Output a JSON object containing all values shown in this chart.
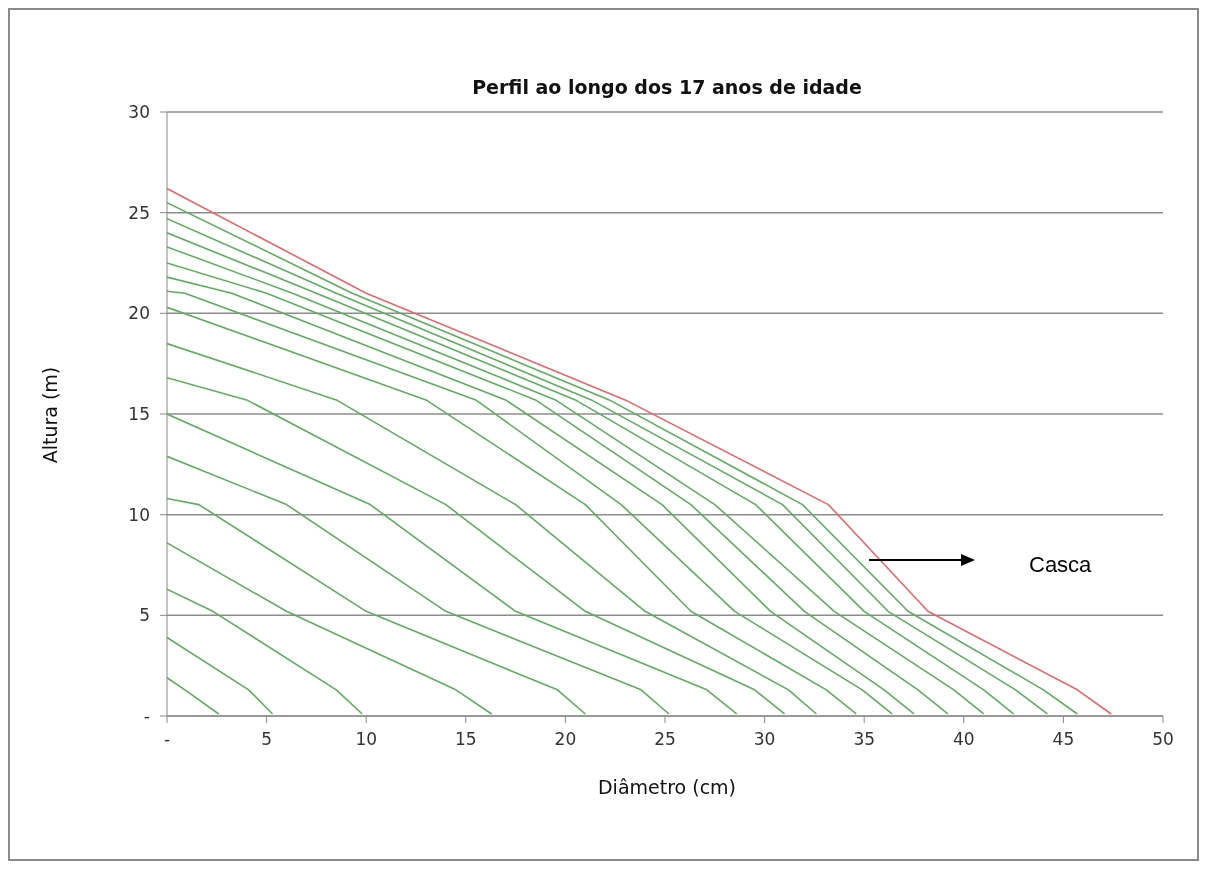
{
  "chart_data": {
    "type": "line",
    "title": "Perfil ao longo dos 17 anos de idade",
    "xlabel": "Diâmetro (cm)",
    "ylabel": "Altura (m)",
    "xlim": [
      0,
      50
    ],
    "xticks": [
      {
        "value": 0,
        "label": "-"
      },
      5,
      10,
      15,
      20,
      25,
      30,
      35,
      40,
      45,
      50
    ],
    "ylim": [
      0,
      30
    ],
    "yticks": [
      {
        "value": 0,
        "label": "-"
      },
      5,
      10,
      15,
      20,
      25,
      30
    ],
    "grid": "y",
    "marker": "none",
    "line_style": "solid",
    "annotations": [
      "Casca"
    ],
    "series": [
      {
        "color": "#5fad5f",
        "x": [
          0,
          0.9,
          2.6
        ],
        "values": [
          1.9,
          1.3,
          0.1
        ]
      },
      {
        "color": "#5fad5f",
        "x": [
          0,
          4.1,
          5.3
        ],
        "values": [
          3.9,
          1.3,
          0.1
        ]
      },
      {
        "color": "#5fad5f",
        "x": [
          0,
          2.3,
          8.5,
          9.8
        ],
        "values": [
          6.3,
          5.2,
          1.3,
          0.1
        ]
      },
      {
        "color": "#5fad5f",
        "x": [
          0,
          6.0,
          14.5,
          16.3
        ],
        "values": [
          8.6,
          5.2,
          1.3,
          0.1
        ]
      },
      {
        "color": "#5fad5f",
        "x": [
          0,
          1.6,
          10.0,
          19.6,
          21.0
        ],
        "values": [
          10.8,
          10.5,
          5.2,
          1.3,
          0.1
        ]
      },
      {
        "color": "#5fad5f",
        "x": [
          0,
          6.0,
          14.0,
          23.8,
          25.2
        ],
        "values": [
          12.9,
          10.5,
          5.2,
          1.3,
          0.1
        ]
      },
      {
        "color": "#5fad5f",
        "x": [
          0,
          10.2,
          17.5,
          27.1,
          28.6
        ],
        "values": [
          15.0,
          10.5,
          5.2,
          1.3,
          0.1
        ]
      },
      {
        "color": "#5fad5f",
        "x": [
          0,
          4.0,
          14.0,
          21.0,
          29.5,
          31.0
        ],
        "values": [
          16.8,
          15.7,
          10.5,
          5.2,
          1.3,
          0.1
        ]
      },
      {
        "color": "#5fad5f",
        "x": [
          0,
          8.5,
          17.5,
          24.0,
          31.2,
          32.6
        ],
        "values": [
          18.5,
          15.7,
          10.5,
          5.2,
          1.3,
          0.1
        ]
      },
      {
        "color": "#5fad5f",
        "x": [
          0,
          13.0,
          21.0,
          26.3,
          33.1,
          34.6
        ],
        "values": [
          20.3,
          15.7,
          10.5,
          5.2,
          1.3,
          0.1
        ]
      },
      {
        "color": "#5fad5f",
        "x": [
          0,
          0.9,
          15.5,
          22.8,
          28.5,
          34.9,
          36.4
        ],
        "values": [
          21.1,
          21.0,
          15.7,
          10.5,
          5.2,
          1.3,
          0.1
        ]
      },
      {
        "color": "#5fad5f",
        "x": [
          0,
          3.25,
          17.0,
          24.85,
          30.3,
          36.0,
          37.5
        ],
        "values": [
          21.8,
          21.0,
          15.7,
          10.5,
          5.2,
          1.3,
          0.1
        ]
      },
      {
        "color": "#5fad5f",
        "x": [
          0,
          5.0,
          18.5,
          26.3,
          32.0,
          37.7,
          39.2
        ],
        "values": [
          22.5,
          21.0,
          15.7,
          10.5,
          5.2,
          1.3,
          0.1
        ]
      },
      {
        "color": "#5fad5f",
        "x": [
          0,
          6.3,
          19.5,
          27.5,
          33.5,
          39.5,
          41.0
        ],
        "values": [
          23.3,
          21.0,
          15.7,
          10.5,
          5.2,
          1.3,
          0.1
        ]
      },
      {
        "color": "#5fad5f",
        "x": [
          0,
          7.5,
          20.5,
          29.55,
          35.0,
          41.0,
          42.5
        ],
        "values": [
          24.0,
          21.0,
          15.7,
          10.5,
          5.2,
          1.3,
          0.1
        ]
      },
      {
        "color": "#5fad5f",
        "x": [
          0,
          8.5,
          21.3,
          30.9,
          36.2,
          42.6,
          44.2
        ],
        "values": [
          24.7,
          21.0,
          15.7,
          10.5,
          5.2,
          1.3,
          0.1
        ]
      },
      {
        "color": "#5fad5f",
        "x": [
          0,
          9.3,
          22.2,
          31.9,
          37.2,
          44.0,
          45.7
        ],
        "values": [
          25.5,
          21.0,
          15.7,
          10.5,
          5.2,
          1.3,
          0.1
        ]
      },
      {
        "color": "#e8676b",
        "x": [
          0,
          10.0,
          23.0,
          33.2,
          38.2,
          45.7,
          47.4
        ],
        "values": [
          26.2,
          21.0,
          15.7,
          10.5,
          5.2,
          1.3,
          0.1
        ]
      }
    ]
  }
}
